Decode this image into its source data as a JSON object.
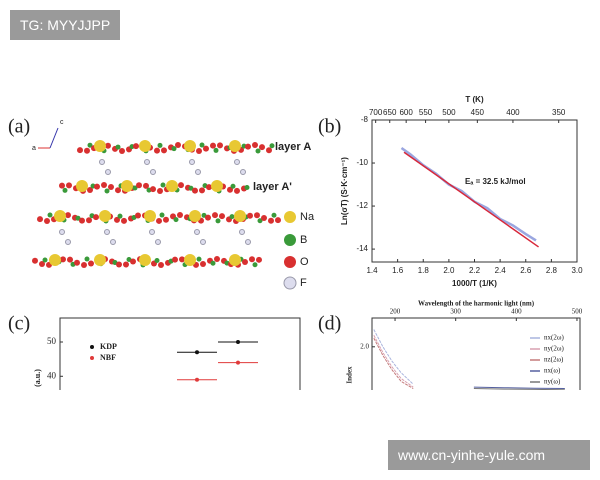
{
  "watermark_top": "TG: MYYJJPP",
  "watermark_bottom": "www.cn-yinhe-yule.com",
  "panel_a": {
    "label": "(a)",
    "axes": [
      "a",
      "c"
    ],
    "layers": [
      "layer A",
      "layer A'"
    ],
    "legend": [
      "Na",
      "B",
      "O",
      "F"
    ]
  },
  "chart_data": [
    {
      "type": "line",
      "panel_label": "(b)",
      "x_label": "1000/T (1/K)",
      "y_label": "Ln(σT) (S·K·cm⁻¹)",
      "x2_label": "T (K)",
      "annotation": "Eₐ = 32.5 kJ/mol",
      "xlim": [
        1.4,
        3.0
      ],
      "xticks": [
        {
          "value": 1.4,
          "label": "1.4"
        },
        1.6,
        1.8,
        {
          "value": 2,
          "label": "2.0"
        },
        2.2,
        2.4,
        2.6,
        2.8,
        {
          "value": 3,
          "label": "3.0"
        }
      ],
      "x2ticks": [
        700,
        650,
        600,
        550,
        500,
        450,
        400,
        350
      ],
      "ylim": [
        -14.6,
        -8
      ],
      "yticks": [
        -14,
        -12,
        -10,
        -8
      ],
      "series": [
        {
          "color": "#9aa6e0",
          "x": [
            1.63,
            1.7,
            1.8,
            1.9,
            2.0,
            2.1,
            2.2,
            2.3,
            2.4,
            2.5,
            2.6,
            2.68
          ],
          "values": [
            -9.3,
            -9.6,
            -10.1,
            -10.5,
            -11.0,
            -11.3,
            -11.8,
            -12.1,
            -12.6,
            -12.9,
            -13.3,
            -13.6
          ]
        },
        {
          "color": "#d8283a",
          "x": [
            1.65,
            2.7
          ],
          "values": [
            -9.5,
            -13.9
          ]
        }
      ]
    },
    {
      "type": "scatter",
      "panel_label": "(c)",
      "y_label": "(a.u.)",
      "ylim": [
        36,
        57
      ],
      "yticks": [
        40,
        50
      ],
      "series": [
        {
          "name": "KDP",
          "color": "#111111",
          "values": [
            50,
            47
          ]
        },
        {
          "name": "NBF",
          "color": "#e03a3a",
          "values": [
            44,
            39
          ]
        }
      ]
    },
    {
      "type": "line",
      "panel_label": "(d)",
      "x_label": "Wavelength of the harmonic light (nm)",
      "y_label": "Index",
      "xlim": [
        162,
        505
      ],
      "xticks": [
        200,
        300,
        400,
        500
      ],
      "ylim": [
        1.85,
        2.1
      ],
      "yticks": [
        {
          "value": 2,
          "label": "2.0"
        }
      ],
      "series": [
        {
          "name": "nx(2ω)",
          "color": "#a9b4dd",
          "x": [
            165,
            180,
            195,
            210,
            230
          ],
          "values": [
            2.06,
            2.0,
            1.95,
            1.91,
            1.87
          ]
        },
        {
          "name": "ny(2ω)",
          "color": "#d8a0b0",
          "x": [
            165,
            180,
            195,
            210,
            230
          ],
          "values": [
            2.04,
            1.98,
            1.93,
            1.89,
            1.86
          ]
        },
        {
          "name": "nz(2ω)",
          "color": "#c47a7a",
          "x": [
            165,
            180,
            195,
            210,
            230
          ],
          "values": [
            2.03,
            1.97,
            1.92,
            1.88,
            1.855
          ]
        },
        {
          "name": "nx(ω)",
          "color": "#5560a0",
          "x": [
            330,
            380,
            430,
            480
          ],
          "values": [
            1.86,
            1.858,
            1.856,
            1.855
          ]
        },
        {
          "name": "ny(ω)",
          "color": "#777777",
          "x": [
            330,
            380,
            430,
            480
          ],
          "values": [
            1.855,
            1.853,
            1.852,
            1.851
          ]
        }
      ]
    }
  ]
}
